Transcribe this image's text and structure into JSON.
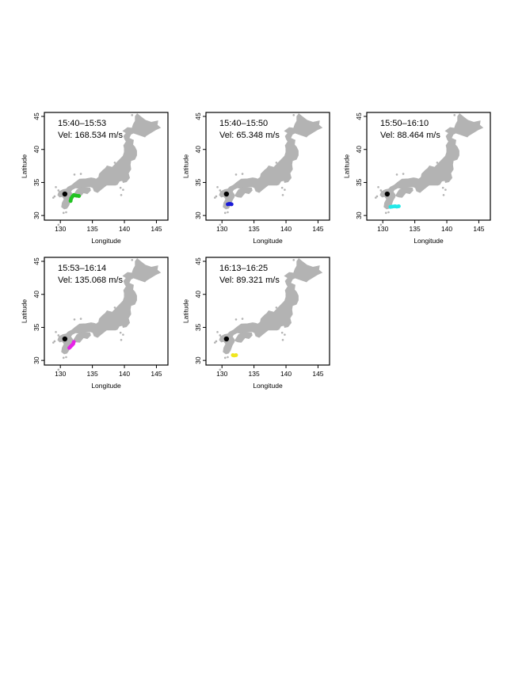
{
  "axes": {
    "xlabel": "Longitude",
    "ylabel": "Latitude",
    "xticks": [
      130,
      135,
      140,
      145
    ],
    "yticks": [
      30,
      35,
      40,
      45
    ],
    "xlim": [
      127.5,
      146.8
    ],
    "ylim": [
      29.3,
      45.6
    ]
  },
  "colors": {
    "land": "#b3b3b3",
    "epicenter": "#000000",
    "frame": "#000000"
  },
  "epicenter": {
    "lon": 130.7,
    "lat": 33.25
  },
  "panels": [
    {
      "id": "p1",
      "time": "15:40–15:53",
      "velocity": "Vel: 168.534 m/s",
      "color": "#22c322",
      "track": [
        [
          131.6,
          32.2
        ],
        [
          131.7,
          32.6
        ],
        [
          131.9,
          32.9
        ],
        [
          132.1,
          33.1
        ],
        [
          132.5,
          33.0
        ],
        [
          132.9,
          32.95
        ]
      ]
    },
    {
      "id": "p2",
      "time": "15:40–15:50",
      "velocity": "Vel: 65.348 m/s",
      "color": "#1a1ad8",
      "track": [
        [
          130.9,
          31.7
        ],
        [
          131.1,
          31.75
        ],
        [
          131.3,
          31.75
        ],
        [
          131.5,
          31.7
        ]
      ]
    },
    {
      "id": "p3",
      "time": "15:50–16:10",
      "velocity": "Vel: 88.464 m/s",
      "color": "#22e8e8",
      "track": [
        [
          131.2,
          31.3
        ],
        [
          131.5,
          31.35
        ],
        [
          131.9,
          31.4
        ],
        [
          132.2,
          31.35
        ],
        [
          132.5,
          31.4
        ]
      ]
    },
    {
      "id": "p4",
      "time": "15:53–16:14",
      "velocity": "Vel: 135.068 m/s",
      "color": "#e622e6",
      "track": [
        [
          131.4,
          31.9
        ],
        [
          131.6,
          32.1
        ],
        [
          131.8,
          32.3
        ],
        [
          132.0,
          32.5
        ],
        [
          132.1,
          32.8
        ]
      ]
    },
    {
      "id": "p5",
      "time": "16:13–16:25",
      "velocity": "Vel: 89.321 m/s",
      "color": "#f0e61e",
      "track": [
        [
          131.7,
          30.8
        ],
        [
          131.9,
          30.75
        ],
        [
          132.2,
          30.8
        ]
      ]
    }
  ]
}
